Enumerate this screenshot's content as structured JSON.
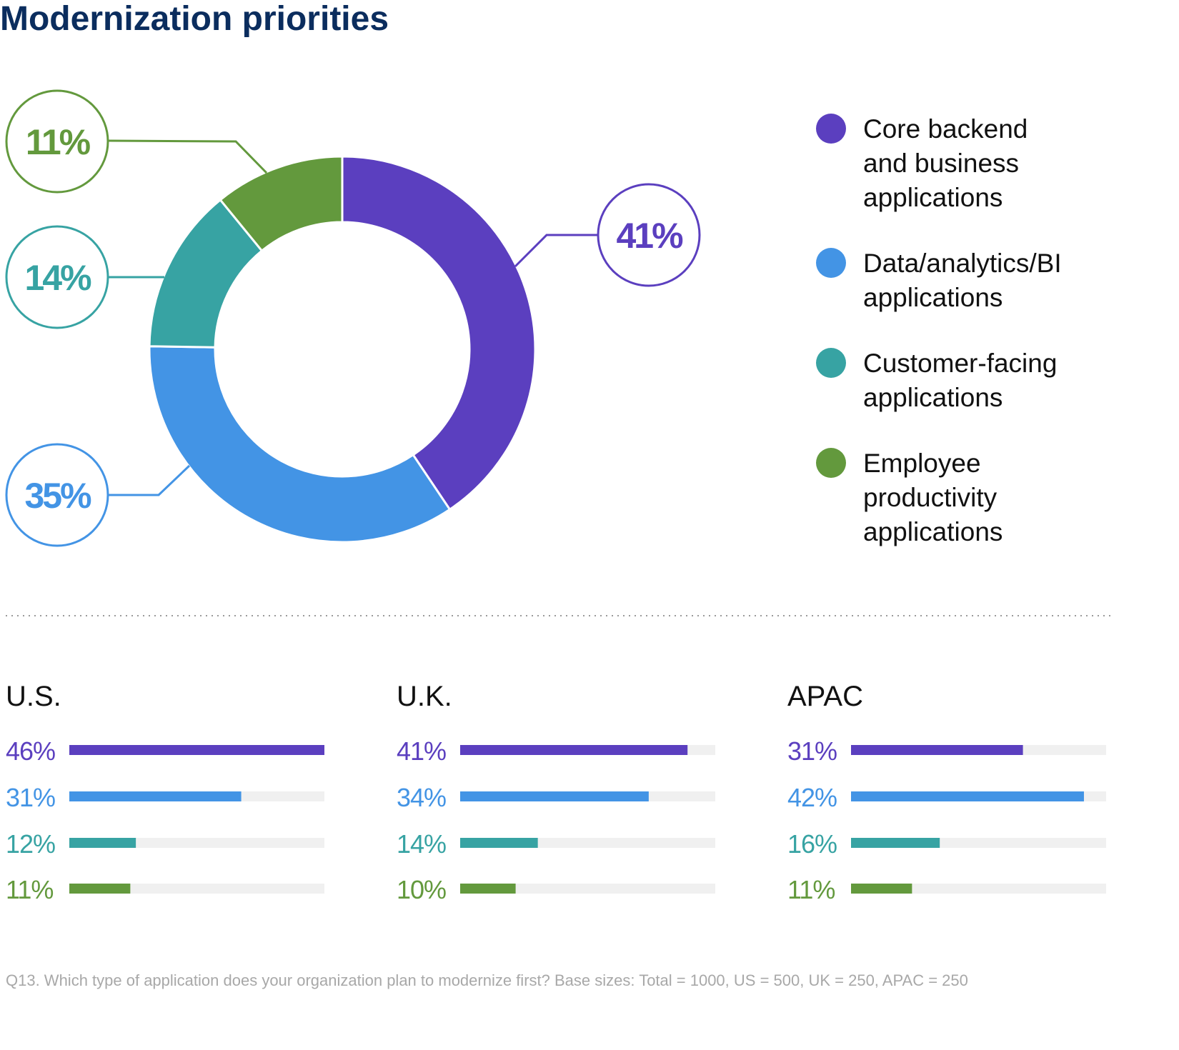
{
  "title": "Modernization priorities",
  "colors": {
    "title": "#0b2d5e",
    "track": "#f0f0f0",
    "text": "#111111",
    "footnote": "#a8a8a8",
    "divider": "#9a9a9a"
  },
  "chart_data": [
    {
      "type": "pie",
      "variant": "donut",
      "series": [
        {
          "name": "Core backend and business applications",
          "legend_lines": [
            "Core backend",
            "and business",
            "applications"
          ],
          "value": 41,
          "label": "41%",
          "color": "#5b3fbf"
        },
        {
          "name": "Data/analytics/BI applications",
          "legend_lines": [
            "Data/analytics/BI",
            "applications"
          ],
          "value": 35,
          "label": "35%",
          "color": "#4394e5"
        },
        {
          "name": "Customer-facing applications",
          "legend_lines": [
            "Customer-facing",
            "applications"
          ],
          "value": 14,
          "label": "14%",
          "color": "#37a3a3"
        },
        {
          "name": "Employee productivity applications",
          "legend_lines": [
            "Employee",
            "productivity",
            "applications"
          ],
          "value": 11,
          "label": "11%",
          "color": "#63993d"
        }
      ],
      "legend": "right"
    },
    {
      "type": "bar",
      "orientation": "horizontal",
      "xlim": [
        0,
        46
      ],
      "groups": [
        {
          "title": "U.S.",
          "values": [
            46,
            31,
            12,
            11
          ],
          "labels": [
            "46%",
            "31%",
            "12%",
            "11%"
          ]
        },
        {
          "title": "U.K.",
          "values": [
            41,
            34,
            14,
            10
          ],
          "labels": [
            "41%",
            "34%",
            "14%",
            "10%"
          ]
        },
        {
          "title": "APAC",
          "values": [
            31,
            42,
            16,
            11
          ],
          "labels": [
            "31%",
            "42%",
            "16%",
            "11%"
          ]
        }
      ]
    }
  ],
  "footnote": "Q13.  Which type of application does your organization plan to modernize first? Base sizes: Total = 1000, US = 500, UK = 250, APAC = 250"
}
